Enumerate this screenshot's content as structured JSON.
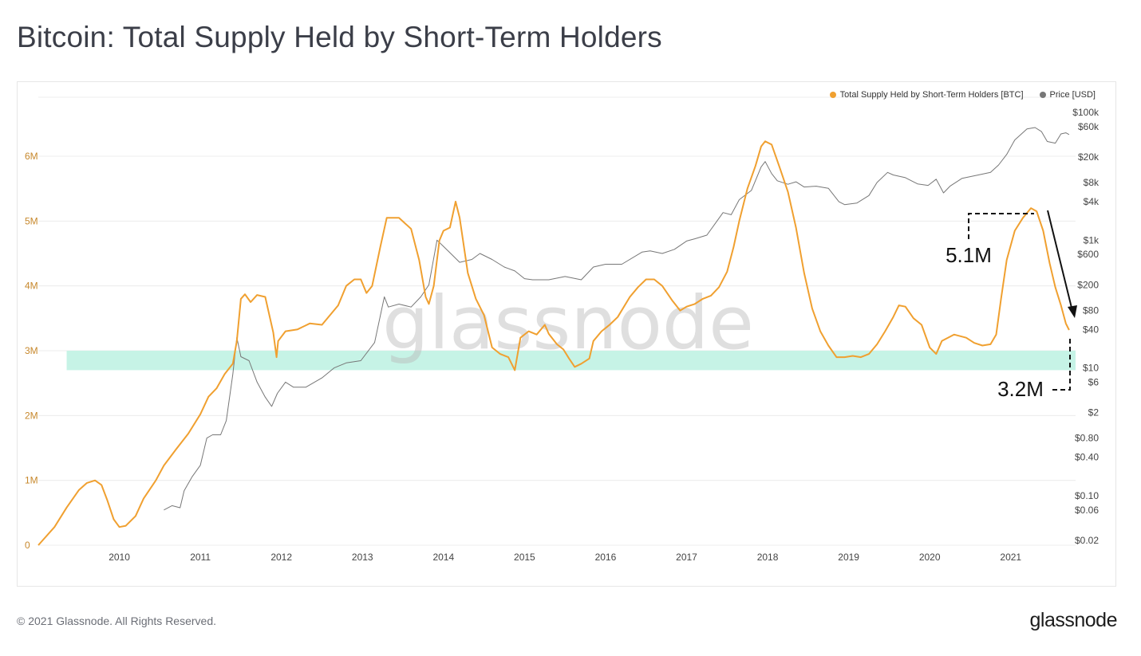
{
  "page": {
    "title": "Bitcoin: Total Supply Held by Short-Term Holders",
    "footer": "© 2021 Glassnode. All Rights Reserved.",
    "brand": "glassnode",
    "watermark": "glassnode"
  },
  "colors": {
    "supply": "#f0a030",
    "price": "#777777",
    "band": "#c6f3e6",
    "grid": "#ececec",
    "left_ticks": "#c7882c",
    "right_ticks": "#444444"
  },
  "chart_data": {
    "type": "line",
    "title": "Bitcoin: Total Supply Held by Short-Term Holders",
    "xlim": [
      2009.0,
      2021.8
    ],
    "x_ticks": [
      2010,
      2011,
      2012,
      2013,
      2014,
      2015,
      2016,
      2017,
      2018,
      2019,
      2020,
      2021
    ],
    "y_left": {
      "ylim": [
        0,
        6000000
      ],
      "ticks": [
        {
          "v": 0,
          "label": "0"
        },
        {
          "v": 1000000,
          "label": "1M"
        },
        {
          "v": 2000000,
          "label": "2M"
        },
        {
          "v": 3000000,
          "label": "3M"
        },
        {
          "v": 4000000,
          "label": "4M"
        },
        {
          "v": 5000000,
          "label": "5M"
        },
        {
          "v": 6000000,
          "label": "6M"
        }
      ]
    },
    "y_right": {
      "scale": "log",
      "ticks": [
        {
          "v": 100000,
          "label": "$100k"
        },
        {
          "v": 60000,
          "label": "$60k"
        },
        {
          "v": 20000,
          "label": "$20k"
        },
        {
          "v": 8000,
          "label": "$8k"
        },
        {
          "v": 4000,
          "label": "$4k"
        },
        {
          "v": 1000,
          "label": "$1k"
        },
        {
          "v": 600,
          "label": "$600"
        },
        {
          "v": 200,
          "label": "$200"
        },
        {
          "v": 80,
          "label": "$80"
        },
        {
          "v": 40,
          "label": "$40"
        },
        {
          "v": 10,
          "label": "$10"
        },
        {
          "v": 6,
          "label": "$6"
        },
        {
          "v": 2,
          "label": "$2"
        },
        {
          "v": 0.8,
          "label": "$0.80"
        },
        {
          "v": 0.4,
          "label": "$0.40"
        },
        {
          "v": 0.1,
          "label": "$0.10"
        },
        {
          "v": 0.06,
          "label": "$0.06"
        },
        {
          "v": 0.02,
          "label": "$0.02"
        }
      ]
    },
    "band": {
      "y_from": 2700000,
      "y_to": 3000000,
      "x_from": 2009.35,
      "x_to": 2021.8
    },
    "legend": [
      {
        "name": "Total Supply Held by Short-Term Holders [BTC]",
        "color": "#f0a030"
      },
      {
        "name": "Price [USD]",
        "color": "#777777"
      }
    ],
    "series": [
      {
        "name": "Total Supply Held by Short-Term Holders [BTC]",
        "axis": "left",
        "color": "#f0a030",
        "points": [
          [
            2009.0,
            0
          ],
          [
            2009.2,
            280000
          ],
          [
            2009.35,
            580000
          ],
          [
            2009.5,
            850000
          ],
          [
            2009.6,
            960000
          ],
          [
            2009.7,
            1000000
          ],
          [
            2009.78,
            930000
          ],
          [
            2009.85,
            700000
          ],
          [
            2009.93,
            400000
          ],
          [
            2010.0,
            280000
          ],
          [
            2010.08,
            300000
          ],
          [
            2010.2,
            450000
          ],
          [
            2010.3,
            720000
          ],
          [
            2010.45,
            1000000
          ],
          [
            2010.55,
            1230000
          ],
          [
            2010.7,
            1480000
          ],
          [
            2010.85,
            1720000
          ],
          [
            2011.0,
            2020000
          ],
          [
            2011.1,
            2290000
          ],
          [
            2011.2,
            2420000
          ],
          [
            2011.3,
            2640000
          ],
          [
            2011.4,
            2800000
          ],
          [
            2011.45,
            3150000
          ],
          [
            2011.5,
            3800000
          ],
          [
            2011.55,
            3870000
          ],
          [
            2011.62,
            3750000
          ],
          [
            2011.7,
            3860000
          ],
          [
            2011.8,
            3830000
          ],
          [
            2011.9,
            3280000
          ],
          [
            2011.94,
            2900000
          ],
          [
            2011.96,
            3150000
          ],
          [
            2012.05,
            3300000
          ],
          [
            2012.2,
            3330000
          ],
          [
            2012.35,
            3420000
          ],
          [
            2012.5,
            3400000
          ],
          [
            2012.7,
            3700000
          ],
          [
            2012.8,
            4000000
          ],
          [
            2012.9,
            4100000
          ],
          [
            2012.98,
            4100000
          ],
          [
            2013.05,
            3890000
          ],
          [
            2013.12,
            4000000
          ],
          [
            2013.22,
            4600000
          ],
          [
            2013.3,
            5050000
          ],
          [
            2013.45,
            5050000
          ],
          [
            2013.6,
            4880000
          ],
          [
            2013.7,
            4400000
          ],
          [
            2013.78,
            3830000
          ],
          [
            2013.82,
            3720000
          ],
          [
            2013.88,
            4000000
          ],
          [
            2013.95,
            4700000
          ],
          [
            2014.0,
            4850000
          ],
          [
            2014.08,
            4900000
          ],
          [
            2014.15,
            5300000
          ],
          [
            2014.2,
            5050000
          ],
          [
            2014.3,
            4200000
          ],
          [
            2014.4,
            3800000
          ],
          [
            2014.5,
            3550000
          ],
          [
            2014.6,
            3050000
          ],
          [
            2014.7,
            2950000
          ],
          [
            2014.8,
            2900000
          ],
          [
            2014.88,
            2700000
          ],
          [
            2014.95,
            3200000
          ],
          [
            2015.05,
            3300000
          ],
          [
            2015.15,
            3250000
          ],
          [
            2015.25,
            3400000
          ],
          [
            2015.3,
            3260000
          ],
          [
            2015.4,
            3100000
          ],
          [
            2015.48,
            3020000
          ],
          [
            2015.55,
            2880000
          ],
          [
            2015.62,
            2750000
          ],
          [
            2015.7,
            2800000
          ],
          [
            2015.8,
            2880000
          ],
          [
            2015.85,
            3150000
          ],
          [
            2015.95,
            3300000
          ],
          [
            2016.05,
            3400000
          ],
          [
            2016.15,
            3520000
          ],
          [
            2016.3,
            3830000
          ],
          [
            2016.4,
            3980000
          ],
          [
            2016.5,
            4100000
          ],
          [
            2016.6,
            4100000
          ],
          [
            2016.7,
            4000000
          ],
          [
            2016.82,
            3780000
          ],
          [
            2016.92,
            3620000
          ],
          [
            2017.0,
            3680000
          ],
          [
            2017.1,
            3720000
          ],
          [
            2017.2,
            3800000
          ],
          [
            2017.3,
            3850000
          ],
          [
            2017.4,
            3980000
          ],
          [
            2017.5,
            4220000
          ],
          [
            2017.58,
            4600000
          ],
          [
            2017.65,
            5000000
          ],
          [
            2017.75,
            5500000
          ],
          [
            2017.85,
            5850000
          ],
          [
            2017.92,
            6150000
          ],
          [
            2017.97,
            6230000
          ],
          [
            2018.05,
            6180000
          ],
          [
            2018.15,
            5820000
          ],
          [
            2018.25,
            5450000
          ],
          [
            2018.35,
            4900000
          ],
          [
            2018.45,
            4200000
          ],
          [
            2018.55,
            3650000
          ],
          [
            2018.65,
            3300000
          ],
          [
            2018.75,
            3080000
          ],
          [
            2018.85,
            2900000
          ],
          [
            2018.95,
            2900000
          ],
          [
            2019.05,
            2920000
          ],
          [
            2019.15,
            2900000
          ],
          [
            2019.25,
            2950000
          ],
          [
            2019.35,
            3100000
          ],
          [
            2019.45,
            3300000
          ],
          [
            2019.55,
            3520000
          ],
          [
            2019.62,
            3700000
          ],
          [
            2019.7,
            3680000
          ],
          [
            2019.8,
            3500000
          ],
          [
            2019.9,
            3400000
          ],
          [
            2020.0,
            3050000
          ],
          [
            2020.08,
            2950000
          ],
          [
            2020.15,
            3150000
          ],
          [
            2020.3,
            3250000
          ],
          [
            2020.45,
            3200000
          ],
          [
            2020.55,
            3120000
          ],
          [
            2020.65,
            3080000
          ],
          [
            2020.75,
            3100000
          ],
          [
            2020.82,
            3250000
          ],
          [
            2020.88,
            3800000
          ],
          [
            2020.95,
            4400000
          ],
          [
            2021.05,
            4850000
          ],
          [
            2021.15,
            5050000
          ],
          [
            2021.25,
            5200000
          ],
          [
            2021.32,
            5150000
          ],
          [
            2021.4,
            4850000
          ],
          [
            2021.48,
            4350000
          ],
          [
            2021.55,
            3980000
          ],
          [
            2021.62,
            3700000
          ],
          [
            2021.68,
            3420000
          ],
          [
            2021.72,
            3320000
          ]
        ]
      },
      {
        "name": "Price [USD]",
        "axis": "right",
        "color": "#777777",
        "points": [
          [
            2010.55,
            0.06
          ],
          [
            2010.65,
            0.07
          ],
          [
            2010.75,
            0.065
          ],
          [
            2010.8,
            0.12
          ],
          [
            2010.9,
            0.2
          ],
          [
            2011.0,
            0.3
          ],
          [
            2011.08,
            0.8
          ],
          [
            2011.15,
            0.9
          ],
          [
            2011.25,
            0.9
          ],
          [
            2011.32,
            1.5
          ],
          [
            2011.4,
            8
          ],
          [
            2011.45,
            30
          ],
          [
            2011.5,
            15
          ],
          [
            2011.6,
            13
          ],
          [
            2011.7,
            6
          ],
          [
            2011.8,
            3.5
          ],
          [
            2011.88,
            2.5
          ],
          [
            2011.95,
            4
          ],
          [
            2012.05,
            6
          ],
          [
            2012.15,
            5
          ],
          [
            2012.3,
            5
          ],
          [
            2012.5,
            7
          ],
          [
            2012.65,
            10
          ],
          [
            2012.8,
            12
          ],
          [
            2012.98,
            13
          ],
          [
            2013.15,
            25
          ],
          [
            2013.27,
            130
          ],
          [
            2013.32,
            90
          ],
          [
            2013.45,
            100
          ],
          [
            2013.6,
            90
          ],
          [
            2013.72,
            130
          ],
          [
            2013.82,
            200
          ],
          [
            2013.92,
            1000
          ],
          [
            2014.0,
            800
          ],
          [
            2014.1,
            600
          ],
          [
            2014.2,
            450
          ],
          [
            2014.35,
            500
          ],
          [
            2014.45,
            620
          ],
          [
            2014.6,
            500
          ],
          [
            2014.75,
            380
          ],
          [
            2014.88,
            330
          ],
          [
            2015.0,
            250
          ],
          [
            2015.1,
            240
          ],
          [
            2015.3,
            240
          ],
          [
            2015.5,
            270
          ],
          [
            2015.7,
            240
          ],
          [
            2015.85,
            380
          ],
          [
            2016.0,
            420
          ],
          [
            2016.2,
            420
          ],
          [
            2016.45,
            650
          ],
          [
            2016.55,
            680
          ],
          [
            2016.7,
            620
          ],
          [
            2016.85,
            720
          ],
          [
            2017.0,
            970
          ],
          [
            2017.1,
            1050
          ],
          [
            2017.25,
            1200
          ],
          [
            2017.35,
            1800
          ],
          [
            2017.45,
            2700
          ],
          [
            2017.55,
            2500
          ],
          [
            2017.65,
            4300
          ],
          [
            2017.8,
            6000
          ],
          [
            2017.92,
            14000
          ],
          [
            2017.97,
            17000
          ],
          [
            2018.05,
            11000
          ],
          [
            2018.12,
            8500
          ],
          [
            2018.25,
            7500
          ],
          [
            2018.35,
            8200
          ],
          [
            2018.45,
            6800
          ],
          [
            2018.6,
            7000
          ],
          [
            2018.75,
            6500
          ],
          [
            2018.88,
            4000
          ],
          [
            2018.95,
            3600
          ],
          [
            2019.1,
            3800
          ],
          [
            2019.25,
            5000
          ],
          [
            2019.35,
            8000
          ],
          [
            2019.48,
            11500
          ],
          [
            2019.55,
            10500
          ],
          [
            2019.7,
            9500
          ],
          [
            2019.85,
            7600
          ],
          [
            2019.98,
            7200
          ],
          [
            2020.08,
            9000
          ],
          [
            2020.17,
            5500
          ],
          [
            2020.25,
            7000
          ],
          [
            2020.4,
            9300
          ],
          [
            2020.6,
            10500
          ],
          [
            2020.75,
            11500
          ],
          [
            2020.85,
            15000
          ],
          [
            2020.95,
            22000
          ],
          [
            2021.05,
            37000
          ],
          [
            2021.2,
            55000
          ],
          [
            2021.3,
            58000
          ],
          [
            2021.38,
            50000
          ],
          [
            2021.45,
            35000
          ],
          [
            2021.55,
            33000
          ],
          [
            2021.62,
            46000
          ],
          [
            2021.68,
            48000
          ],
          [
            2021.72,
            45000
          ]
        ]
      }
    ],
    "annotations": [
      {
        "label": "5.1M"
      },
      {
        "label": "3.2M"
      }
    ]
  }
}
